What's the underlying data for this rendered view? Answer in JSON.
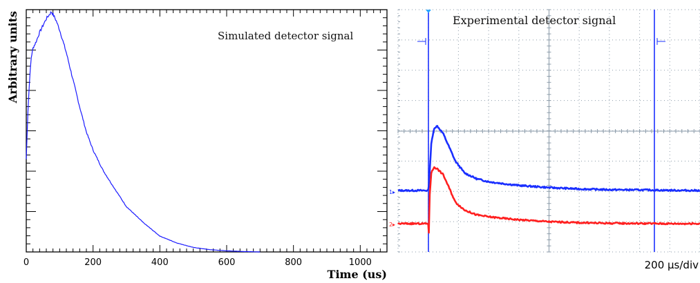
{
  "chart_data": [
    {
      "type": "line",
      "title": "Simulated detector signal",
      "xlabel": "Time (us)",
      "ylabel": "Arbitrary units",
      "xlim": [
        0,
        1080
      ],
      "ylim": [
        0,
        1.07
      ],
      "x_ticks": [
        "0",
        "200",
        "400",
        "600",
        "800",
        "1000"
      ],
      "y_tick_labels_shown": false,
      "grid": false,
      "series": [
        {
          "color": "#1a1aff",
          "x": [
            0,
            5,
            10,
            15,
            20,
            30,
            40,
            50,
            60,
            70,
            75,
            80,
            90,
            100,
            120,
            140,
            160,
            180,
            200,
            230,
            260,
            300,
            350,
            400,
            450,
            500,
            550,
            600,
            650,
            700
          ],
          "y": [
            0.41,
            0.62,
            0.76,
            0.86,
            0.9,
            0.93,
            0.97,
            1.0,
            1.03,
            1.05,
            1.06,
            1.05,
            1.02,
            0.98,
            0.88,
            0.76,
            0.64,
            0.53,
            0.45,
            0.36,
            0.29,
            0.2,
            0.13,
            0.07,
            0.04,
            0.02,
            0.01,
            0.005,
            0.002,
            0.0
          ]
        }
      ]
    },
    {
      "type": "line",
      "title": "Experimental detector signal",
      "x_scale_label": "200 µs/div",
      "x_units": "div",
      "xlim": [
        0,
        10
      ],
      "grid": true,
      "channel_markers": [
        "1",
        "2"
      ],
      "series": [
        {
          "name": "1",
          "color": "#1a2fff",
          "x": [
            0,
            1.0,
            1.03,
            1.1,
            1.2,
            1.3,
            1.5,
            1.7,
            1.9,
            2.2,
            2.6,
            3.0,
            3.5,
            4.0,
            5.0,
            6.0,
            7.0,
            8.0,
            9.0,
            10.0
          ],
          "y": [
            0,
            0,
            0.5,
            2.4,
            3.2,
            3.3,
            2.9,
            2.2,
            1.5,
            0.9,
            0.6,
            0.45,
            0.35,
            0.26,
            0.15,
            0.08,
            0.04,
            0.03,
            0.01,
            0.0
          ]
        },
        {
          "name": "2",
          "color": "#ff2020",
          "x": [
            0,
            1.0,
            1.02,
            1.05,
            1.1,
            1.2,
            1.3,
            1.5,
            1.7,
            1.9,
            2.2,
            2.6,
            3.0,
            3.5,
            4.0,
            5.0,
            6.0,
            7.0,
            8.0,
            9.0,
            10.0
          ],
          "y": [
            0,
            0,
            -0.5,
            1.5,
            2.6,
            2.9,
            2.8,
            2.5,
            1.8,
            1.1,
            0.7,
            0.45,
            0.35,
            0.27,
            0.2,
            0.1,
            0.05,
            0.02,
            0.01,
            0.0,
            0.0
          ]
        }
      ]
    }
  ]
}
